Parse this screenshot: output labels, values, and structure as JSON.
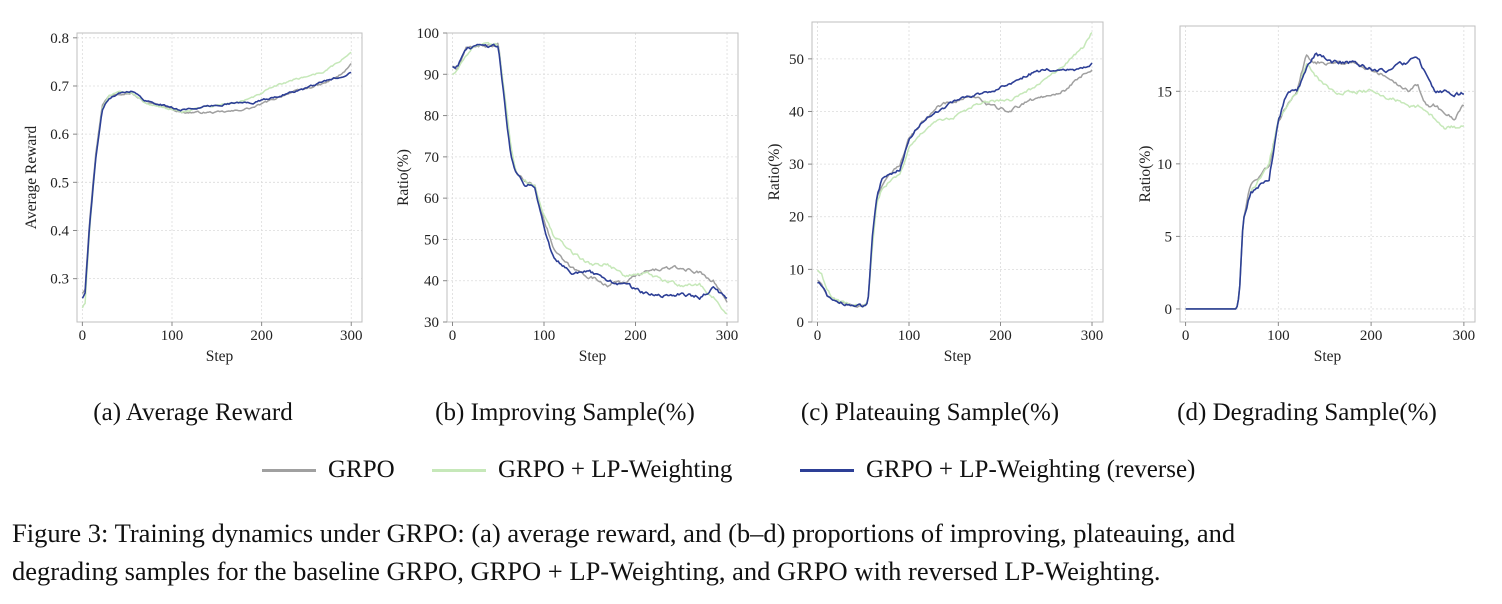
{
  "colors": {
    "grpo": "#a0a0a0",
    "lp": "#c6e8b9",
    "rev": "#2d3f96",
    "grid": "#dcdcdc",
    "axis": "#bfbfbf"
  },
  "legend": {
    "grpo": "GRPO",
    "lp": "GRPO + LP-Weighting",
    "rev": "GRPO + LP-Weighting (reverse)"
  },
  "caption": {
    "line1": "Figure 3: Training dynamics under GRPO: (a) average reward, and (b–d) proportions of improving, plateauing, and",
    "line2": "degrading samples for the baseline GRPO, GRPO + LP-Weighting, and GRPO with reversed LP-Weighting."
  },
  "chart_data": [
    {
      "type": "line",
      "subcaption": "(a) Average Reward",
      "xlabel": "Step",
      "ylabel": "Average Reward",
      "xlim": [
        -6,
        312
      ],
      "ylim": [
        0.21,
        0.81
      ],
      "xticks": [
        0,
        100,
        200,
        300
      ],
      "xtick_labels": [
        "0",
        "100",
        "200",
        "300"
      ],
      "yticks": [
        0.3,
        0.4,
        0.5,
        0.6,
        0.7,
        0.8
      ],
      "ytick_labels": [
        "0.3",
        "0.4",
        "0.5",
        "0.6",
        "0.7",
        "0.8"
      ],
      "noise": 0.004,
      "series": [
        {
          "name": "GRPO",
          "key": "grpo",
          "x": [
            0,
            3,
            8,
            15,
            22,
            30,
            40,
            55,
            70,
            90,
            110,
            130,
            150,
            170,
            190,
            210,
            230,
            250,
            270,
            290,
            300
          ],
          "values": [
            0.27,
            0.28,
            0.42,
            0.56,
            0.66,
            0.68,
            0.685,
            0.685,
            0.665,
            0.66,
            0.645,
            0.645,
            0.645,
            0.648,
            0.655,
            0.67,
            0.685,
            0.695,
            0.705,
            0.725,
            0.745
          ]
        },
        {
          "name": "GRPO + LP-Weighting",
          "key": "lp",
          "x": [
            0,
            3,
            8,
            15,
            22,
            30,
            40,
            55,
            70,
            90,
            110,
            130,
            150,
            170,
            190,
            210,
            230,
            250,
            270,
            290,
            300
          ],
          "values": [
            0.24,
            0.25,
            0.4,
            0.55,
            0.65,
            0.68,
            0.69,
            0.685,
            0.665,
            0.655,
            0.645,
            0.655,
            0.66,
            0.665,
            0.675,
            0.695,
            0.71,
            0.72,
            0.73,
            0.755,
            0.77
          ]
        },
        {
          "name": "GRPO + LP-Weighting (reverse)",
          "key": "rev",
          "x": [
            0,
            3,
            8,
            15,
            22,
            30,
            40,
            55,
            70,
            90,
            110,
            130,
            150,
            170,
            190,
            210,
            230,
            250,
            270,
            290,
            300
          ],
          "values": [
            0.26,
            0.27,
            0.41,
            0.55,
            0.65,
            0.675,
            0.685,
            0.69,
            0.67,
            0.66,
            0.65,
            0.655,
            0.66,
            0.665,
            0.665,
            0.675,
            0.685,
            0.695,
            0.71,
            0.72,
            0.73
          ]
        }
      ]
    },
    {
      "type": "line",
      "subcaption": "(b) Improving Sample(%)",
      "xlabel": "Step",
      "ylabel": "Ratio(%)",
      "xlim": [
        -6,
        312
      ],
      "ylim": [
        30,
        100
      ],
      "xticks": [
        0,
        100,
        200,
        300
      ],
      "xtick_labels": [
        "0",
        "100",
        "200",
        "300"
      ],
      "yticks": [
        30,
        40,
        50,
        60,
        70,
        80,
        90,
        100
      ],
      "ytick_labels": [
        "30",
        "40",
        "50",
        "60",
        "70",
        "80",
        "90",
        "100"
      ],
      "noise": 0.9,
      "series": [
        {
          "name": "GRPO",
          "key": "grpo",
          "x": [
            0,
            5,
            15,
            25,
            35,
            50,
            55,
            60,
            65,
            70,
            80,
            90,
            100,
            110,
            120,
            130,
            150,
            170,
            190,
            210,
            230,
            250,
            270,
            285,
            300
          ],
          "values": [
            92,
            91,
            96,
            97,
            97,
            97,
            88,
            78,
            70,
            66,
            64,
            63,
            55,
            48,
            45,
            43,
            41,
            39,
            40,
            42,
            43,
            43,
            42,
            40,
            35
          ]
        },
        {
          "name": "GRPO + LP-Weighting",
          "key": "lp",
          "x": [
            0,
            5,
            15,
            25,
            35,
            50,
            55,
            60,
            65,
            70,
            80,
            90,
            100,
            110,
            120,
            130,
            150,
            170,
            190,
            210,
            230,
            250,
            270,
            285,
            300
          ],
          "values": [
            90,
            91,
            95,
            97,
            97,
            97,
            89,
            80,
            71,
            66,
            64,
            63,
            56,
            51,
            49,
            47,
            44,
            44,
            41,
            42,
            40,
            39,
            39,
            36,
            32
          ]
        },
        {
          "name": "GRPO + LP-Weighting (reverse)",
          "key": "rev",
          "x": [
            0,
            5,
            15,
            25,
            35,
            50,
            55,
            60,
            65,
            70,
            80,
            90,
            100,
            110,
            120,
            130,
            150,
            170,
            190,
            210,
            230,
            250,
            270,
            285,
            300
          ],
          "values": [
            92,
            92,
            96,
            97,
            97,
            97,
            87,
            77,
            69,
            66,
            63,
            63,
            53,
            46,
            44,
            42,
            42,
            40,
            39,
            37,
            36,
            37,
            36,
            38,
            36
          ]
        }
      ]
    },
    {
      "type": "line",
      "subcaption": "(c) Plateauing Sample(%)",
      "xlabel": "Step",
      "ylabel": "Ratio(%)",
      "xlim": [
        -6,
        312
      ],
      "ylim": [
        0,
        57
      ],
      "xticks": [
        0,
        100,
        200,
        300
      ],
      "xtick_labels": [
        "0",
        "100",
        "200",
        "300"
      ],
      "yticks": [
        0,
        10,
        20,
        30,
        40,
        50
      ],
      "ytick_labels": [
        "0",
        "10",
        "20",
        "30",
        "40",
        "50"
      ],
      "noise": 0.6,
      "series": [
        {
          "name": "GRPO",
          "key": "grpo",
          "x": [
            0,
            5,
            10,
            20,
            30,
            40,
            50,
            55,
            60,
            65,
            70,
            80,
            90,
            100,
            110,
            120,
            130,
            150,
            170,
            190,
            210,
            230,
            250,
            270,
            290,
            300
          ],
          "values": [
            8,
            7,
            5,
            4,
            3.5,
            3,
            3,
            3.5,
            15,
            24,
            26,
            28,
            30,
            35,
            37,
            39,
            41,
            42,
            43,
            41,
            40,
            42,
            43,
            44,
            47,
            48
          ]
        },
        {
          "name": "GRPO + LP-Weighting",
          "key": "lp",
          "x": [
            0,
            5,
            10,
            20,
            30,
            40,
            50,
            55,
            60,
            65,
            70,
            80,
            90,
            100,
            110,
            120,
            130,
            150,
            170,
            190,
            210,
            230,
            250,
            270,
            290,
            300
          ],
          "values": [
            10,
            9,
            6,
            4,
            3.5,
            3,
            3,
            3.5,
            14,
            23,
            25,
            27,
            28,
            33,
            35,
            37,
            38,
            39,
            41,
            42,
            42,
            44,
            46,
            49,
            52,
            55
          ]
        },
        {
          "name": "GRPO + LP-Weighting (reverse)",
          "key": "rev",
          "x": [
            0,
            5,
            10,
            20,
            30,
            40,
            50,
            55,
            60,
            65,
            70,
            80,
            90,
            100,
            110,
            120,
            130,
            150,
            170,
            190,
            210,
            230,
            250,
            270,
            290,
            300
          ],
          "values": [
            7.5,
            7,
            5,
            4,
            3.5,
            3,
            3,
            3.5,
            16,
            24,
            27,
            28,
            29,
            35,
            37,
            39,
            40,
            42,
            43,
            44,
            45,
            47,
            48,
            48,
            48,
            49
          ]
        }
      ]
    },
    {
      "type": "line",
      "subcaption": "(d) Degrading Sample(%)",
      "xlabel": "Step",
      "ylabel": "Ratio(%)",
      "xlim": [
        -6,
        312
      ],
      "ylim": [
        -0.9,
        19.5
      ],
      "xticks": [
        0,
        100,
        200,
        300
      ],
      "xtick_labels": [
        "0",
        "100",
        "200",
        "300"
      ],
      "yticks": [
        0,
        5,
        10,
        15
      ],
      "ytick_labels": [
        "0",
        "5",
        "10",
        "15"
      ],
      "noise": 0.3,
      "series": [
        {
          "name": "GRPO",
          "key": "grpo",
          "x": [
            0,
            55,
            58,
            62,
            70,
            80,
            90,
            100,
            110,
            120,
            130,
            140,
            160,
            180,
            200,
            220,
            240,
            250,
            260,
            270,
            280,
            290,
            300
          ],
          "values": [
            0,
            0,
            1,
            6,
            8.5,
            9,
            10,
            13,
            14,
            15,
            17.5,
            17,
            17,
            17,
            16.5,
            16,
            15,
            15.5,
            14,
            14,
            13.5,
            13,
            14
          ]
        },
        {
          "name": "GRPO + LP-Weighting",
          "key": "lp",
          "x": [
            0,
            55,
            58,
            62,
            70,
            80,
            90,
            100,
            110,
            120,
            130,
            140,
            160,
            180,
            200,
            220,
            240,
            250,
            260,
            270,
            280,
            290,
            300
          ],
          "values": [
            0,
            0,
            1,
            6,
            8,
            9,
            10,
            13,
            14,
            15,
            17,
            16,
            15,
            15,
            15,
            14.5,
            14,
            14,
            13.5,
            13,
            12.5,
            12.5,
            12.5
          ]
        },
        {
          "name": "GRPO + LP-Weighting (reverse)",
          "key": "rev",
          "x": [
            0,
            55,
            58,
            62,
            70,
            80,
            90,
            100,
            110,
            120,
            130,
            140,
            160,
            180,
            200,
            220,
            240,
            250,
            260,
            270,
            280,
            290,
            300
          ],
          "values": [
            0,
            0,
            1,
            6,
            8,
            8.5,
            9,
            13,
            15,
            15,
            16.5,
            17.5,
            17,
            17,
            16.5,
            16.5,
            17,
            17.5,
            16,
            15,
            15,
            14.8,
            14.8
          ]
        }
      ]
    }
  ]
}
